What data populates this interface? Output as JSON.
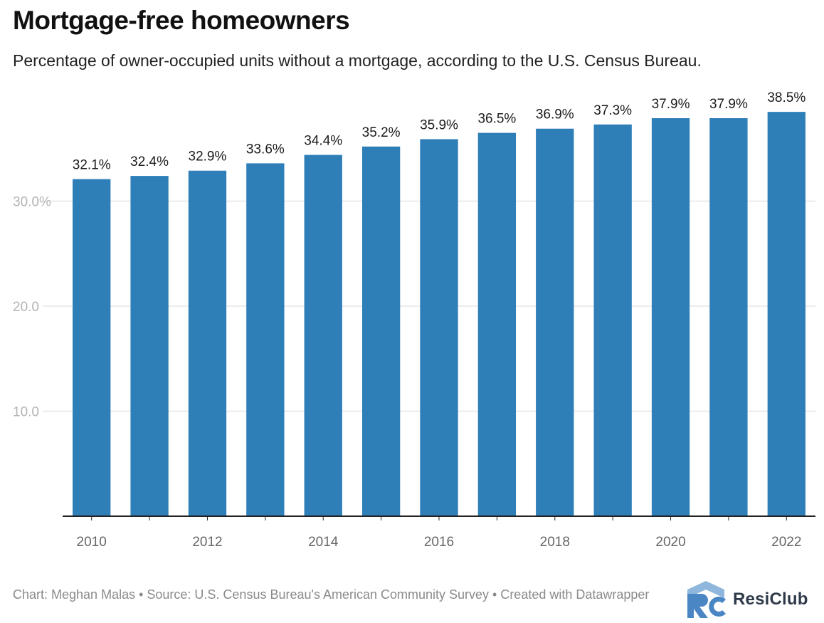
{
  "chart_data": {
    "type": "bar",
    "title": "Mortgage-free homeowners",
    "subtitle": "Percentage of owner-occupied units without a mortgage, according to the U.S. Census Bureau.",
    "categories": [
      "2010",
      "2011",
      "2012",
      "2013",
      "2014",
      "2015",
      "2016",
      "2017",
      "2018",
      "2019",
      "2020",
      "2021",
      "2022"
    ],
    "values": [
      32.1,
      32.4,
      32.9,
      33.6,
      34.4,
      35.2,
      35.9,
      36.5,
      36.9,
      37.3,
      37.9,
      37.9,
      38.5
    ],
    "value_labels": [
      "32.1%",
      "32.4%",
      "32.9%",
      "33.6%",
      "34.4%",
      "35.2%",
      "35.9%",
      "36.5%",
      "36.9%",
      "37.3%",
      "37.9%",
      "37.9%",
      "38.5%"
    ],
    "x_tick_labels": [
      "2010",
      "",
      "2012",
      "",
      "2014",
      "",
      "2016",
      "",
      "2018",
      "",
      "2020",
      "",
      "2022"
    ],
    "y_ticks": [
      10,
      20,
      30
    ],
    "y_tick_labels": [
      "10.0",
      "20.0",
      "30.0%"
    ],
    "ylim": [
      0,
      40
    ],
    "xlabel": "",
    "ylabel": "",
    "grid": true,
    "bar_color": "#2e7eb8",
    "gridline_color": "#e6e6e6"
  },
  "footer": {
    "credit": "Chart: Meghan Malas • Source: U.S. Census Bureau's American Community Survey • Created with Datawrapper"
  },
  "logo": {
    "brand": "ResiClub",
    "mark_color": "#4a86c4",
    "text_color": "#2e3a4a"
  }
}
